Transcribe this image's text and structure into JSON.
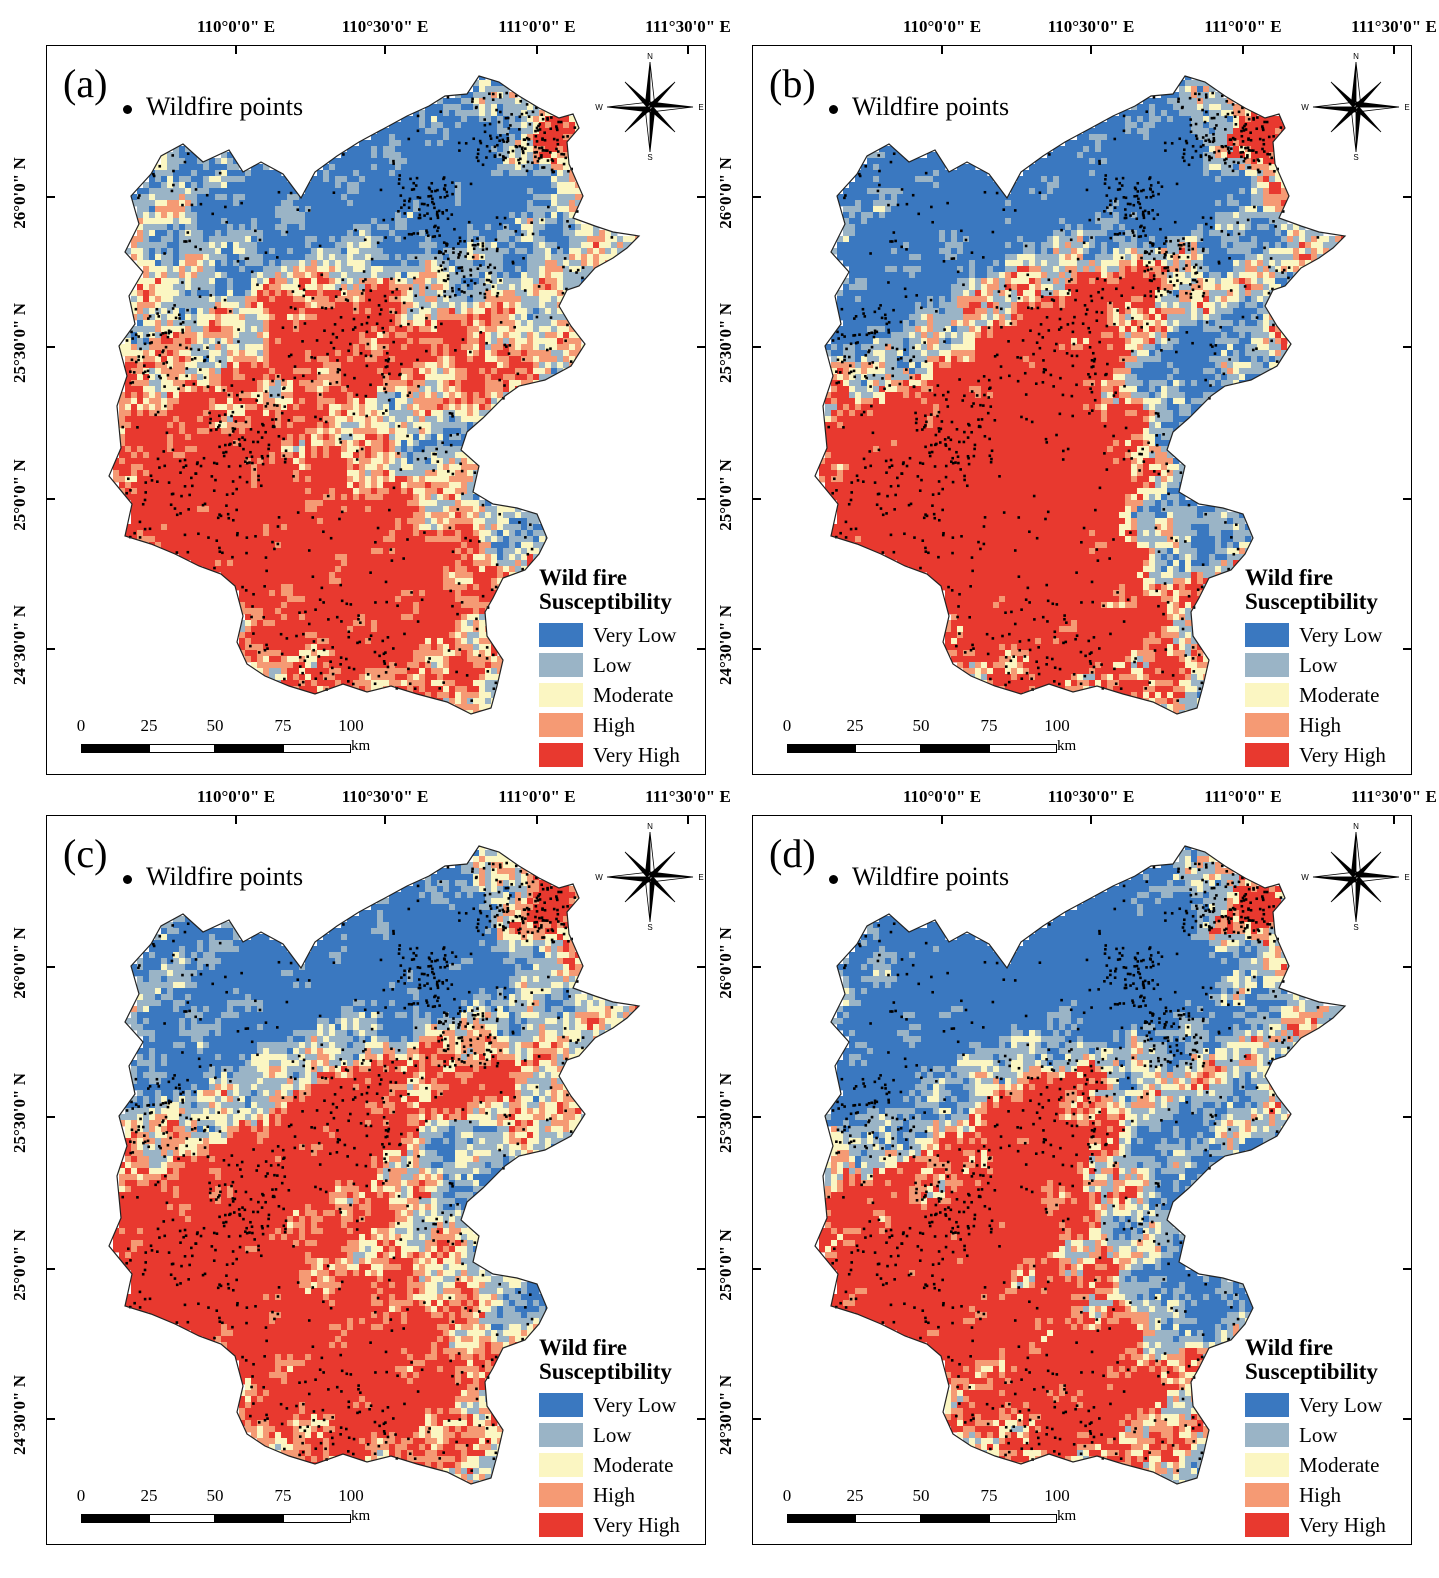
{
  "panels": [
    {
      "id": "a",
      "label": "(a)",
      "pattern": "a"
    },
    {
      "id": "b",
      "label": "(b)",
      "pattern": "b"
    },
    {
      "id": "c",
      "label": "(c)",
      "pattern": "c"
    },
    {
      "id": "d",
      "label": "(d)",
      "pattern": "d"
    }
  ],
  "point_legend": "Wildfire points",
  "legend": {
    "title_line1": "Wild fire",
    "title_line2": "Susceptibility",
    "classes": [
      {
        "label": "Very Low",
        "color": "#3a78c0"
      },
      {
        "label": "Low",
        "color": "#9ab4c6"
      },
      {
        "label": "Moderate",
        "color": "#fbf6c2"
      },
      {
        "label": "High",
        "color": "#f59a74"
      },
      {
        "label": "Very High",
        "color": "#e8392f"
      }
    ]
  },
  "longitude_labels": [
    "110°0'0\" E",
    "110°30'0\" E",
    "111°0'0\" E",
    "111°30'0\" E"
  ],
  "latitude_labels": [
    "26°0'0\" N",
    "25°30'0\" N",
    "25°0'0\" N",
    "24°30'0\" N"
  ],
  "scale_bar": {
    "ticks": [
      "0",
      "25",
      "50",
      "75",
      "100"
    ],
    "unit": "km"
  },
  "north_arrow": {
    "n": "N",
    "s": "S",
    "e": "E",
    "w": "W"
  }
}
